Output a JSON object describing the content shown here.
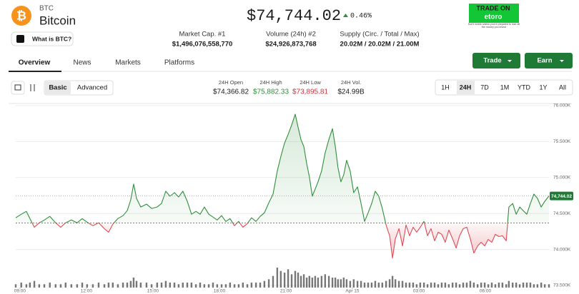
{
  "header": {
    "symbol": "BTC",
    "name": "Bitcoin",
    "what_is": "What is BTC?",
    "price": "$74,744.02",
    "change": "0.46%"
  },
  "stats": [
    {
      "label": "Market Cap. #1",
      "value": "$1,496,076,558,770"
    },
    {
      "label": "Volume (24h) #2",
      "value": "$24,926,873,768"
    },
    {
      "label": "Supply (Circ. / Total / Max)",
      "value": "20.02M / 20.02M / 21.00M"
    }
  ],
  "ad": {
    "title": "TRADE ON",
    "brand": "etoro",
    "disclaimer": "Don't invest unless you're prepared to lose all the money you invest"
  },
  "tabs": [
    "Overview",
    "News",
    "Markets",
    "Platforms"
  ],
  "buttons": [
    "Trade",
    "Earn"
  ],
  "view_modes": [
    "Basic",
    "Advanced"
  ],
  "day_stats": [
    {
      "label": "24H Open",
      "value": "$74,366.82"
    },
    {
      "label": "24H High",
      "value": "$75,882.33"
    },
    {
      "label": "24H Low",
      "value": "$73,895.81"
    },
    {
      "label": "24H Vol.",
      "value": "$24.99B"
    }
  ],
  "ranges": [
    "1H",
    "24H",
    "7D",
    "1M",
    "YTD",
    "1Y",
    "All"
  ],
  "chart_data": {
    "type": "line",
    "up_color": "#2f8f3a",
    "down_color": "#e04a55",
    "volume_color": "#4a4a4a",
    "grid": true,
    "x": [
      8.81,
      9.06,
      9.29,
      9.45,
      9.65,
      9.87,
      10.1,
      10.35,
      10.61,
      10.84,
      11.06,
      11.32,
      11.58,
      11.81,
      12.03,
      12.29,
      12.55,
      12.81,
      13.0,
      13.19,
      13.42,
      13.65,
      13.84,
      14.0,
      14.13,
      14.26,
      14.45,
      14.71,
      14.94,
      15.19,
      15.39,
      15.58,
      15.77,
      15.97,
      16.16,
      16.35,
      16.55,
      16.74,
      16.94,
      17.13,
      17.32,
      17.52,
      17.71,
      17.9,
      18.1,
      18.29,
      18.48,
      18.68,
      18.87,
      19.06,
      19.26,
      19.45,
      19.65,
      19.84,
      20.03,
      20.23,
      20.42,
      20.61,
      20.77,
      20.94,
      21.1,
      21.26,
      21.42,
      21.55,
      21.68,
      21.81,
      21.94,
      22.06,
      22.19,
      22.32,
      22.45,
      22.61,
      22.77,
      22.94,
      23.1,
      23.23,
      23.35,
      23.48,
      23.61,
      23.74,
      23.9,
      24.06,
      24.23,
      24.39,
      24.55,
      24.71,
      24.87,
      25.03,
      25.19,
      25.35,
      25.52,
      25.68,
      25.81,
      25.94,
      26.1,
      26.26,
      26.42,
      26.58,
      26.74,
      26.9,
      27.06,
      27.23,
      27.39,
      27.55,
      27.71,
      27.87,
      28.03,
      28.19,
      28.35,
      28.52,
      28.68,
      28.84,
      29.0,
      29.16,
      29.32,
      29.48,
      29.65,
      29.81,
      29.97,
      30.13,
      30.29,
      30.45,
      30.61,
      30.77,
      30.94,
      31.06,
      31.23,
      31.39,
      31.55,
      31.71,
      31.87,
      32.03,
      32.19,
      32.35,
      32.52,
      32.68,
      32.87
    ],
    "values": [
      74440,
      74490,
      74530,
      74430,
      74310,
      74370,
      74410,
      74460,
      74370,
      74310,
      74370,
      74410,
      74370,
      74430,
      74380,
      74330,
      74370,
      74290,
      74240,
      74350,
      74430,
      74470,
      74540,
      74690,
      74910,
      74710,
      74590,
      74630,
      74570,
      74590,
      74640,
      74810,
      74740,
      74790,
      74730,
      74810,
      74670,
      74490,
      74530,
      74490,
      74590,
      74490,
      74450,
      74410,
      74470,
      74390,
      74430,
      74330,
      74390,
      74310,
      74360,
      74440,
      74390,
      74460,
      74510,
      74650,
      74770,
      75090,
      75290,
      75480,
      75600,
      75730,
      75880,
      75700,
      75530,
      75430,
      75190,
      75010,
      74740,
      74840,
      74940,
      75090,
      75340,
      75530,
      75680,
      75430,
      75140,
      74940,
      75040,
      75240,
      75090,
      74790,
      74870,
      74640,
      74390,
      74510,
      74640,
      74810,
      74740,
      74570,
      74340,
      74190,
      73880,
      74150,
      74290,
      74050,
      74340,
      74190,
      74310,
      74240,
      74310,
      74390,
      74190,
      74290,
      74120,
      74240,
      74210,
      74100,
      74270,
      74150,
      74020,
      74190,
      74290,
      74310,
      74150,
      73950,
      74050,
      74100,
      74050,
      74140,
      74100,
      74210,
      74180,
      74190,
      74120,
      74590,
      74640,
      74490,
      74590,
      74540,
      74490,
      74640,
      74770,
      74710,
      74590,
      74670,
      74744.02
    ],
    "volume": [
      2,
      3,
      2,
      3,
      4,
      2,
      2,
      3,
      2,
      2,
      3,
      2,
      2,
      3,
      2,
      2,
      3,
      2,
      3,
      3,
      2,
      3,
      3,
      4,
      6,
      4,
      3,
      3,
      2,
      3,
      3,
      4,
      3,
      3,
      2,
      3,
      3,
      3,
      2,
      3,
      2,
      2,
      3,
      2,
      2,
      2,
      3,
      2,
      2,
      3,
      2,
      3,
      3,
      3,
      4,
      5,
      7,
      12,
      10,
      9,
      11,
      8,
      10,
      9,
      7,
      8,
      6,
      7,
      6,
      7,
      6,
      7,
      8,
      7,
      6,
      6,
      5,
      5,
      6,
      5,
      4,
      5,
      4,
      4,
      3,
      3,
      3,
      4,
      3,
      3,
      4,
      5,
      7,
      5,
      4,
      4,
      3,
      3,
      3,
      2,
      3,
      3,
      2,
      3,
      3,
      2,
      3,
      3,
      2,
      3,
      3,
      2,
      3,
      3,
      4,
      3,
      2,
      3,
      3,
      2,
      3,
      2,
      3,
      3,
      2,
      4,
      3,
      3,
      2,
      3,
      3,
      3,
      2,
      2,
      3,
      2,
      2
    ],
    "baseline": 74366.82,
    "current_price": {
      "value": 74744.02,
      "label": "74,744.02"
    },
    "xlim": [
      8.81,
      32.87
    ],
    "xticks": [
      {
        "value": 9,
        "label": "09:00"
      },
      {
        "value": 12,
        "label": "12:00"
      },
      {
        "value": 15,
        "label": "15:00"
      },
      {
        "value": 18,
        "label": "18:00"
      },
      {
        "value": 21,
        "label": "21:00"
      },
      {
        "value": 24,
        "label": "Apr 15"
      },
      {
        "value": 27,
        "label": "03:00"
      },
      {
        "value": 30,
        "label": "06:00"
      }
    ],
    "ylim": [
      73500,
      76000
    ],
    "yticks": [
      {
        "value": 73500,
        "label": "73.500K"
      },
      {
        "value": 74000,
        "label": "74.000K"
      },
      {
        "value": 74500,
        "label": "74.500K"
      },
      {
        "value": 75000,
        "label": "75.000K"
      },
      {
        "value": 75500,
        "label": "75.500K"
      },
      {
        "value": 76000,
        "label": "76.000K"
      }
    ]
  }
}
